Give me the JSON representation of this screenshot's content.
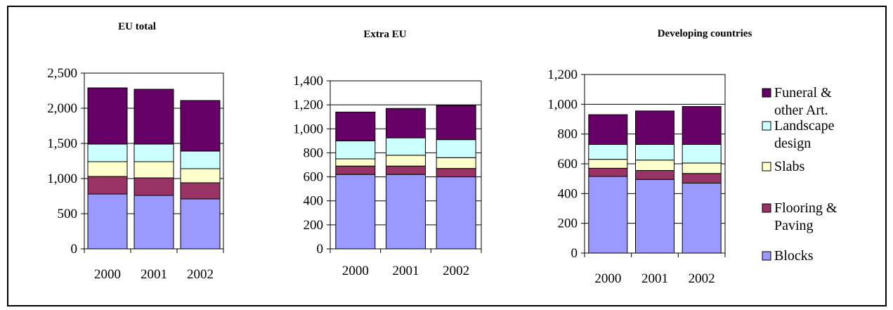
{
  "legend": [
    {
      "lines": [
        "Funeral &",
        "other Art."
      ],
      "color": "#660066"
    },
    {
      "lines": [
        "Landscape",
        "design"
      ],
      "color": "#ccffff"
    },
    {
      "lines": [
        "Slabs"
      ],
      "color": "#ffffcc"
    },
    {
      "lines": [
        "Flooring &",
        "Paving"
      ],
      "color": "#993366"
    },
    {
      "lines": [
        "Blocks"
      ],
      "color": "#9999ff"
    }
  ],
  "chart_data": [
    {
      "type": "bar",
      "stacked": true,
      "title": "EU total",
      "categories": [
        "2000",
        "2001",
        "2002"
      ],
      "ylim": [
        0,
        2500
      ],
      "yticks": [
        0,
        500,
        1000,
        1500,
        2000,
        2500
      ],
      "ytick_labels": [
        "0",
        "500",
        "1,000",
        "1,500",
        "2,000",
        "2,500"
      ],
      "series": [
        {
          "name": "Blocks",
          "color": "#9999ff",
          "values": [
            780,
            760,
            710
          ]
        },
        {
          "name": "Flooring & Paving",
          "color": "#993366",
          "values": [
            250,
            250,
            230
          ]
        },
        {
          "name": "Slabs",
          "color": "#ffffcc",
          "values": [
            210,
            230,
            200
          ]
        },
        {
          "name": "Landscape design",
          "color": "#ccffff",
          "values": [
            250,
            250,
            250
          ]
        },
        {
          "name": "Funeral & other Art.",
          "color": "#660066",
          "values": [
            800,
            780,
            720
          ]
        }
      ]
    },
    {
      "type": "bar",
      "stacked": true,
      "title": "Extra EU",
      "categories": [
        "2000",
        "2001",
        "2002"
      ],
      "ylim": [
        0,
        1400
      ],
      "yticks": [
        0,
        200,
        400,
        600,
        800,
        1000,
        1200,
        1400
      ],
      "ytick_labels": [
        "0",
        "200",
        "400",
        "600",
        "800",
        "1,000",
        "1,200",
        "1,400"
      ],
      "series": [
        {
          "name": "Blocks",
          "color": "#9999ff",
          "values": [
            620,
            620,
            600
          ]
        },
        {
          "name": "Flooring & Paving",
          "color": "#993366",
          "values": [
            70,
            70,
            70
          ]
        },
        {
          "name": "Slabs",
          "color": "#ffffcc",
          "values": [
            60,
            90,
            90
          ]
        },
        {
          "name": "Landscape design",
          "color": "#ccffff",
          "values": [
            150,
            145,
            150
          ]
        },
        {
          "name": "Funeral & other Art.",
          "color": "#660066",
          "values": [
            240,
            245,
            285
          ]
        }
      ]
    },
    {
      "type": "bar",
      "stacked": true,
      "title": "Developing countries",
      "categories": [
        "2000",
        "2001",
        "2002"
      ],
      "ylim": [
        0,
        1200
      ],
      "yticks": [
        0,
        200,
        400,
        600,
        800,
        1000,
        1200
      ],
      "ytick_labels": [
        "0",
        "200",
        "400",
        "600",
        "800",
        "1,000",
        "1,200"
      ],
      "series": [
        {
          "name": "Blocks",
          "color": "#9999ff",
          "values": [
            515,
            495,
            470
          ]
        },
        {
          "name": "Flooring & Paving",
          "color": "#993366",
          "values": [
            55,
            60,
            65
          ]
        },
        {
          "name": "Slabs",
          "color": "#ffffcc",
          "values": [
            60,
            70,
            70
          ]
        },
        {
          "name": "Landscape design",
          "color": "#ccffff",
          "values": [
            100,
            105,
            125
          ]
        },
        {
          "name": "Funeral & other Art.",
          "color": "#660066",
          "values": [
            200,
            225,
            255
          ]
        }
      ]
    }
  ]
}
